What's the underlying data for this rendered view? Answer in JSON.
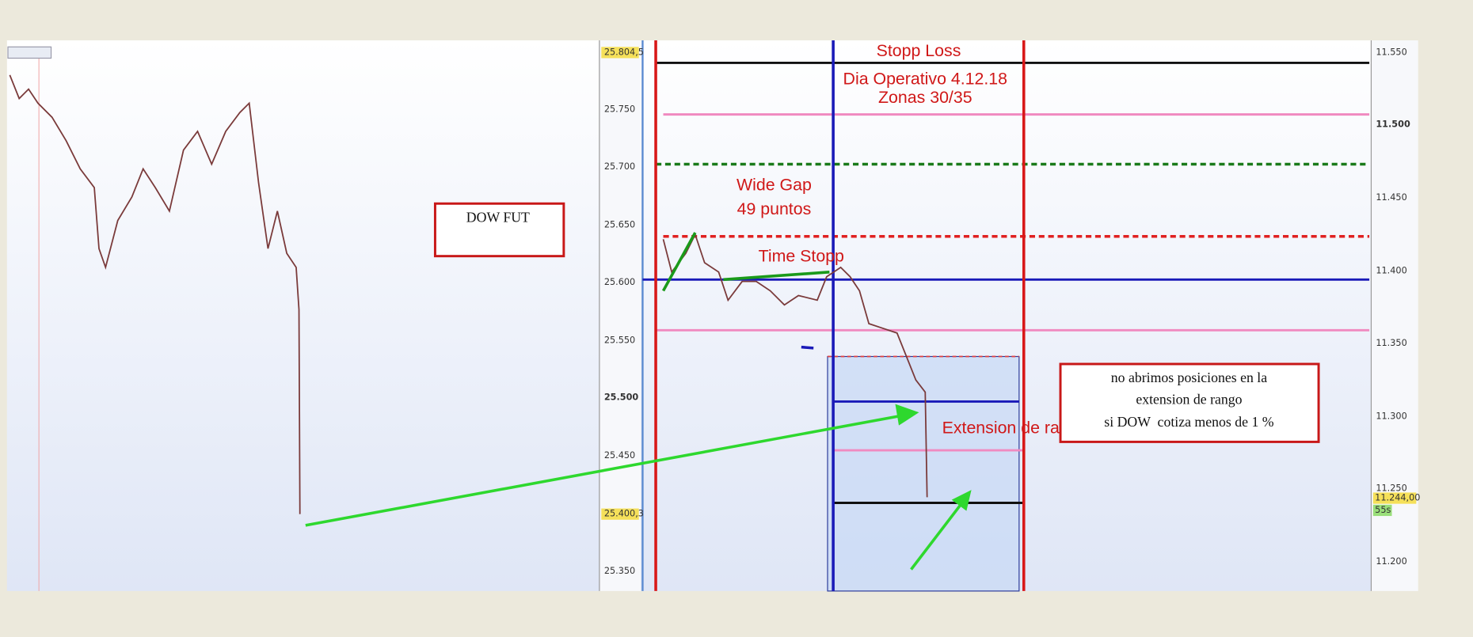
{
  "left_chart": {
    "title_box": "DOW FUT",
    "axis_labels": [
      "25.804,5",
      "25.750",
      "25.700",
      "25.650",
      "25.600",
      "25.550",
      "25.500",
      "25.450",
      "25.400,3",
      "25.350"
    ]
  },
  "right_chart": {
    "axis_labels": [
      "11.550",
      "11.500",
      "11.450",
      "11.400",
      "11.350",
      "11.300",
      "11.250",
      "11.244,00",
      "55s",
      "11.200"
    ],
    "annotations": {
      "stop_loss": "Stopp Loss",
      "day": "Dia Operativo 4.12.18",
      "zones": "Zonas 30/35",
      "gap": "Wide Gap",
      "gap_points": "49 puntos",
      "time_stop": "Time Stopp",
      "extension": "Extension de rango"
    },
    "note": [
      "no abrimos posiciones en la",
      "extension de rango",
      "si DOW  cotiza menos de 1 %"
    ]
  }
}
